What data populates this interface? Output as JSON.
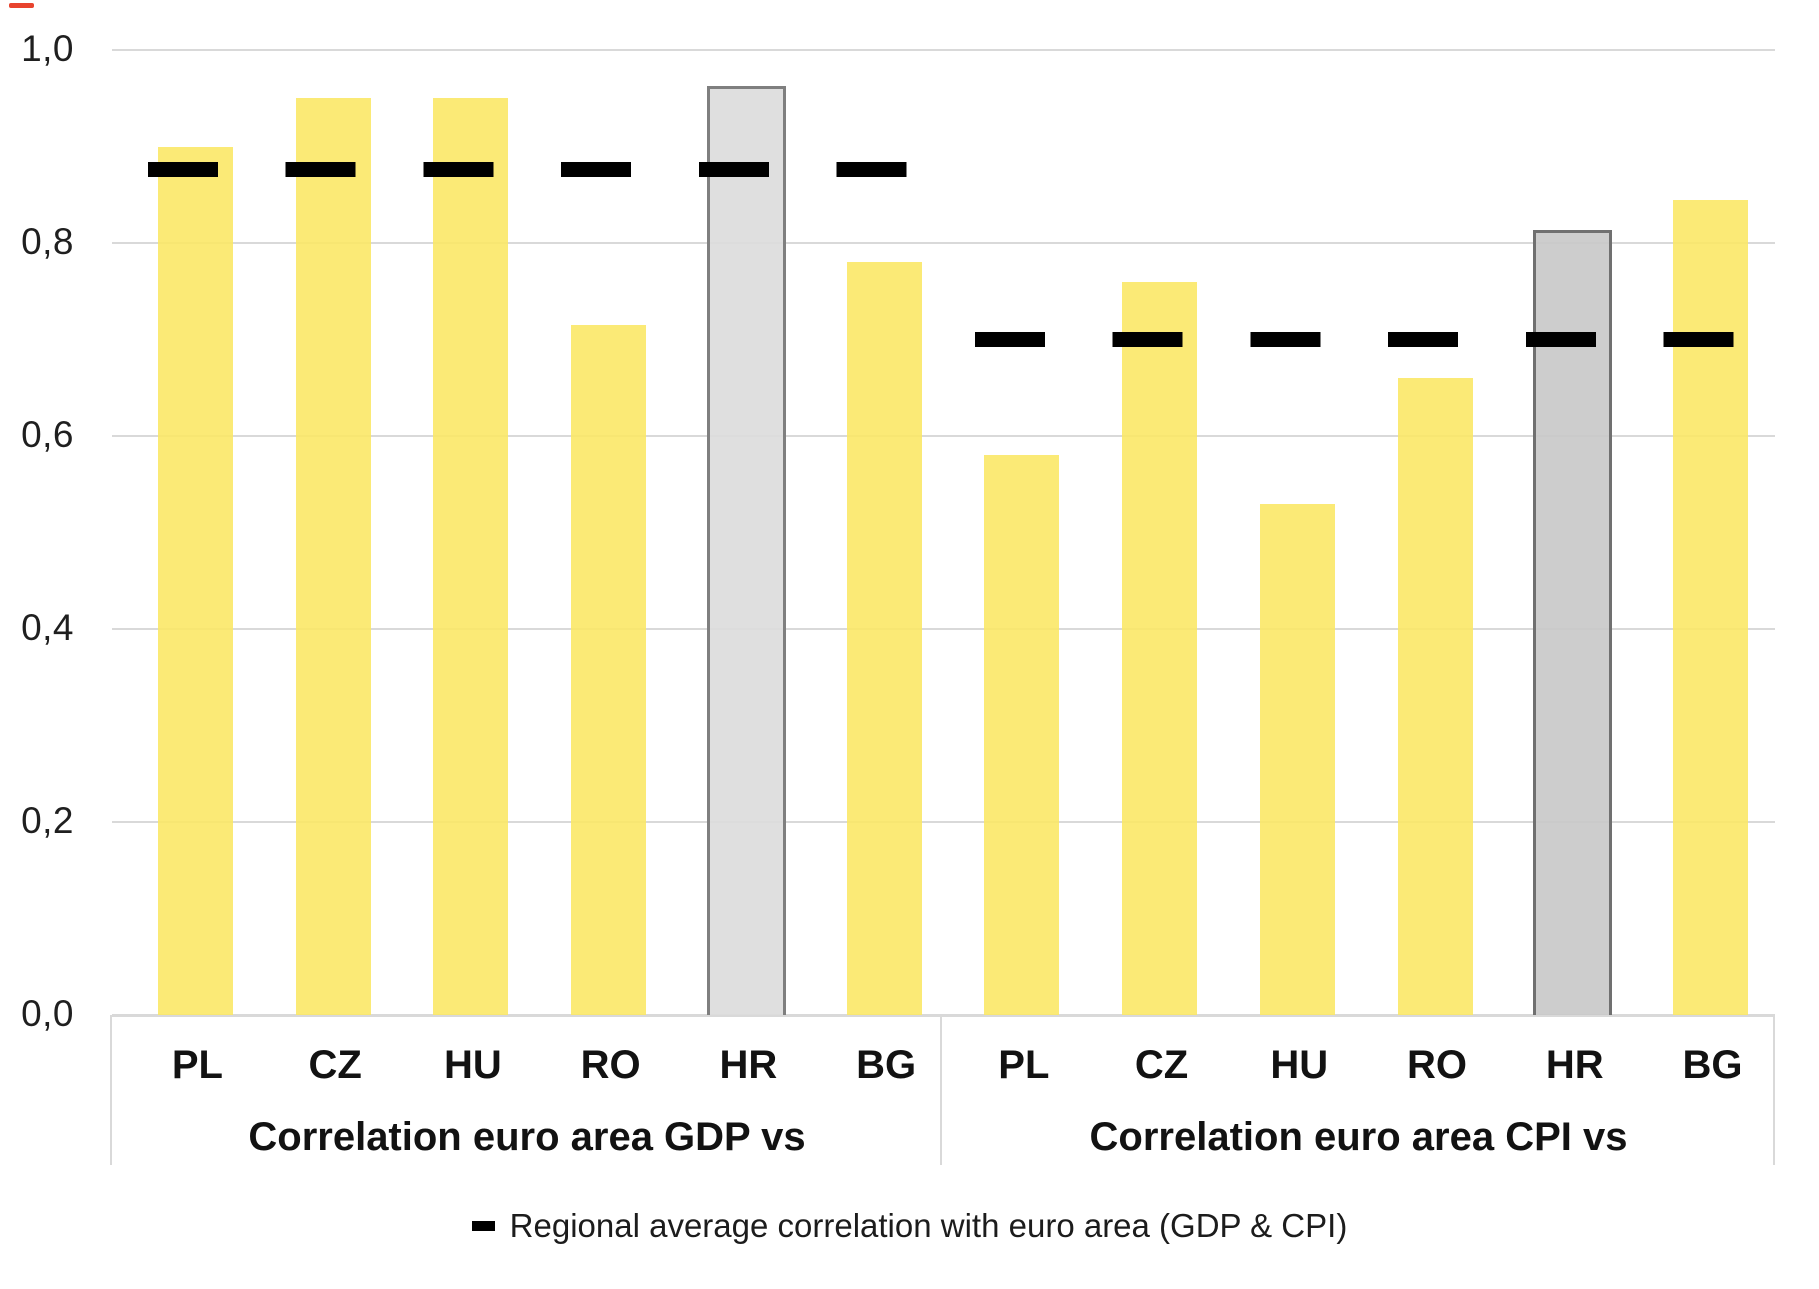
{
  "decor": {
    "red_dash_color": "#E8432E"
  },
  "legend": {
    "marker": "–",
    "label": "Regional average correlation with euro area (GDP & CPI)"
  },
  "chart_data": {
    "type": "bar",
    "title": "",
    "xlabel": "",
    "ylabel": "",
    "ylim": [
      0.0,
      1.0
    ],
    "ytick_labels": [
      "1,0",
      "0,8",
      "0,6",
      "0,4",
      "0,2",
      "0,0"
    ],
    "decimal_style": "comma",
    "grid": true,
    "legend_position": "bottom",
    "groups": [
      {
        "label": "Correlation euro area GDP vs",
        "categories": [
          "PL",
          "CZ",
          "HU",
          "RO",
          "HR",
          "BG"
        ],
        "values": [
          0.9,
          0.95,
          0.95,
          0.715,
          0.96,
          0.78
        ],
        "average": 0.876
      },
      {
        "label": "Correlation euro area CPI vs",
        "categories": [
          "PL",
          "CZ",
          "HU",
          "RO",
          "HR",
          "BG"
        ],
        "values": [
          0.58,
          0.76,
          0.53,
          0.66,
          0.81,
          0.845
        ],
        "average": 0.7
      }
    ],
    "highlight_category": "HR",
    "colors": {
      "bar_yellow": "#FBE763",
      "bar_gray_gdp_fill": "#DCDCDC",
      "bar_gray_gdp_border": "#7F7F7F",
      "bar_gray_cpi_fill": "#C9C9C9",
      "bar_gray_cpi_border": "#707070",
      "average_line": "#000000",
      "gridline": "#D9D9D9"
    }
  }
}
